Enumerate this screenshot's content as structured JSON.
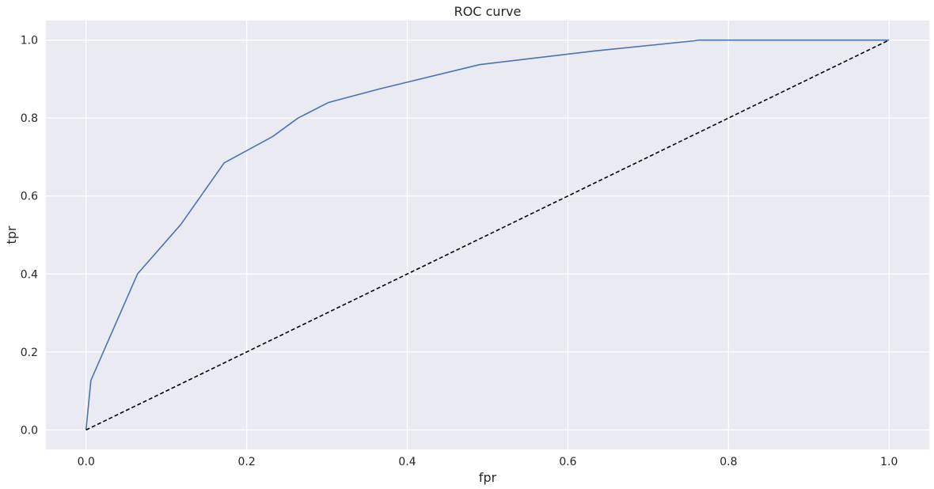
{
  "chart_data": {
    "type": "line",
    "title": "ROC curve",
    "xlabel": "fpr",
    "ylabel": "tpr",
    "xlim": [
      -0.05,
      1.05
    ],
    "ylim": [
      -0.05,
      1.05
    ],
    "xticks": [
      "0.0",
      "0.2",
      "0.4",
      "0.6",
      "0.8",
      "1.0"
    ],
    "yticks": [
      "0.0",
      "0.2",
      "0.4",
      "0.6",
      "0.8",
      "1.0"
    ],
    "grid": true,
    "background_color": "#eaeaf2",
    "series": [
      {
        "style": "solid",
        "color": "#4c72b0",
        "x": [
          0.0,
          0.006,
          0.064,
          0.118,
          0.172,
          0.232,
          0.264,
          0.302,
          0.366,
          0.49,
          0.633,
          0.757,
          0.763,
          1.0
        ],
        "y": [
          0.0,
          0.127,
          0.4,
          0.527,
          0.685,
          0.752,
          0.8,
          0.84,
          0.875,
          0.937,
          0.972,
          0.998,
          1.0,
          1.0
        ]
      },
      {
        "style": "dashed",
        "color": "#000000",
        "x": [
          0.0,
          1.0
        ],
        "y": [
          0.0,
          1.0
        ]
      }
    ]
  }
}
